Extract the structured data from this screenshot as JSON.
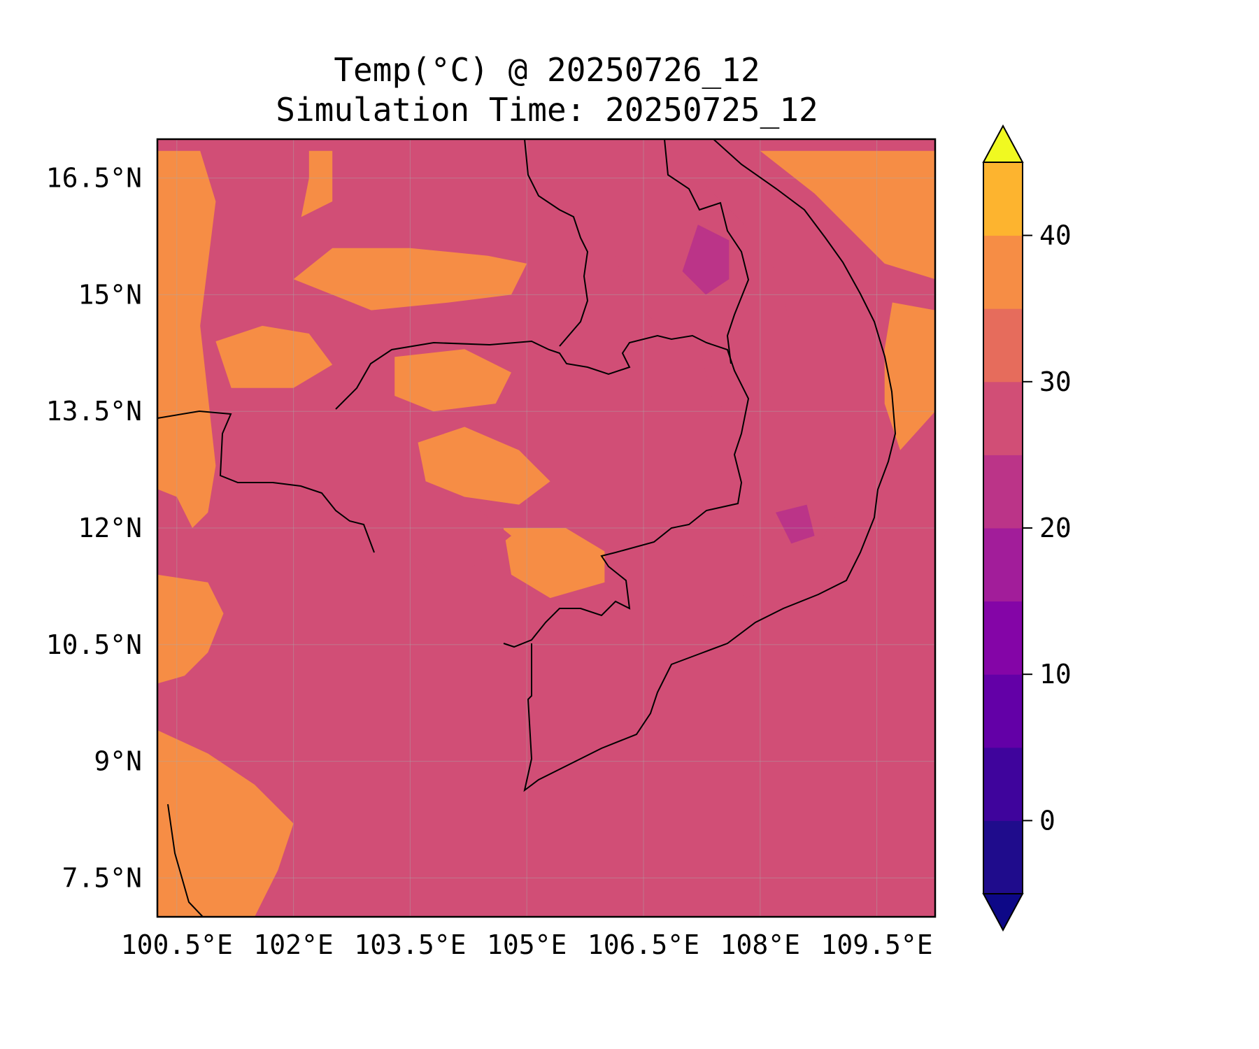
{
  "title_line1": "Temp(°C) @ 20250726_12",
  "title_line2": "Simulation Time: 20250725_12",
  "chart_data": {
    "type": "heatmap",
    "variable": "Temp(°C)",
    "xlim": [
      100.25,
      110.25
    ],
    "ylim": [
      7.0,
      17.0
    ],
    "x_ticks": [
      100.5,
      102.0,
      103.5,
      105.0,
      106.5,
      108.0,
      109.5
    ],
    "x_tick_labels": [
      "100.5°E",
      "102°E",
      "103.5°E",
      "105°E",
      "106.5°E",
      "108°E",
      "109.5°E"
    ],
    "y_ticks": [
      7.5,
      9.0,
      10.5,
      12.0,
      13.5,
      15.0,
      16.5
    ],
    "y_tick_labels": [
      "7.5°N",
      "9°N",
      "10.5°N",
      "12°N",
      "13.5°N",
      "15°N",
      "16.5°N"
    ],
    "grid": true,
    "dominant_level": "25-30",
    "colorbar": {
      "extend": "both",
      "levels": [
        -5,
        0,
        5,
        10,
        15,
        20,
        25,
        30,
        35,
        40,
        45
      ],
      "colors": [
        "#1f0c8c",
        "#3f049c",
        "#6300a7",
        "#8405a7",
        "#a21d9a",
        "#bb3488",
        "#d14e76",
        "#e66c5c",
        "#f68d45",
        "#fdb42f",
        "#f0e126"
      ],
      "under_color": "#0d0887",
      "over_color": "#f0f921",
      "tick_values": [
        0,
        10,
        20,
        30,
        40
      ],
      "tick_labels": [
        "0",
        "10",
        "20",
        "30",
        "40"
      ]
    },
    "regions": [
      {
        "level": "30-35",
        "color": "#f68d45",
        "points": [
          [
            100.25,
            16.85
          ],
          [
            100.8,
            16.85
          ],
          [
            101.0,
            16.2
          ],
          [
            100.9,
            15.4
          ],
          [
            100.8,
            14.6
          ],
          [
            100.9,
            13.7
          ],
          [
            101.0,
            12.8
          ],
          [
            100.9,
            12.2
          ],
          [
            100.7,
            12.0
          ],
          [
            100.5,
            12.4
          ],
          [
            100.25,
            12.5
          ]
        ]
      },
      {
        "level": "30-35",
        "color": "#f68d45",
        "points": [
          [
            100.25,
            11.4
          ],
          [
            100.9,
            11.3
          ],
          [
            101.1,
            10.9
          ],
          [
            100.9,
            10.4
          ],
          [
            100.6,
            10.1
          ],
          [
            100.25,
            10.0
          ]
        ]
      },
      {
        "level": "30-35",
        "color": "#f68d45",
        "points": [
          [
            100.25,
            9.4
          ],
          [
            100.9,
            9.1
          ],
          [
            101.5,
            8.7
          ],
          [
            102.0,
            8.2
          ],
          [
            101.8,
            7.6
          ],
          [
            101.5,
            7.0
          ],
          [
            100.25,
            7.0
          ]
        ]
      },
      {
        "level": "30-35",
        "color": "#f68d45",
        "points": [
          [
            102.2,
            16.85
          ],
          [
            102.5,
            16.85
          ],
          [
            102.5,
            16.2
          ],
          [
            102.1,
            16.0
          ],
          [
            102.2,
            16.5
          ]
        ]
      },
      {
        "level": "30-35",
        "color": "#f68d45",
        "points": [
          [
            102.5,
            15.6
          ],
          [
            103.5,
            15.6
          ],
          [
            104.5,
            15.5
          ],
          [
            105.0,
            15.4
          ],
          [
            104.8,
            15.0
          ],
          [
            104.0,
            14.9
          ],
          [
            103.0,
            14.8
          ],
          [
            102.5,
            15.0
          ],
          [
            102.0,
            15.2
          ]
        ]
      },
      {
        "level": "30-35",
        "color": "#f68d45",
        "points": [
          [
            101.0,
            14.4
          ],
          [
            101.6,
            14.6
          ],
          [
            102.2,
            14.5
          ],
          [
            102.5,
            14.1
          ],
          [
            102.0,
            13.8
          ],
          [
            101.2,
            13.8
          ]
        ]
      },
      {
        "level": "30-35",
        "color": "#f68d45",
        "points": [
          [
            103.3,
            14.2
          ],
          [
            104.2,
            14.3
          ],
          [
            104.8,
            14.0
          ],
          [
            104.6,
            13.6
          ],
          [
            103.8,
            13.5
          ],
          [
            103.3,
            13.7
          ]
        ]
      },
      {
        "level": "30-35",
        "color": "#f68d45",
        "points": [
          [
            103.6,
            13.1
          ],
          [
            104.2,
            13.3
          ],
          [
            104.9,
            13.0
          ],
          [
            105.3,
            12.6
          ],
          [
            104.9,
            12.3
          ],
          [
            104.2,
            12.4
          ],
          [
            103.7,
            12.6
          ]
        ]
      },
      {
        "level": "30-35",
        "color": "#f68d45",
        "points": [
          [
            104.7,
            12.0
          ],
          [
            105.5,
            12.0
          ],
          [
            106.0,
            11.7
          ],
          [
            106.0,
            11.3
          ],
          [
            105.3,
            11.1
          ],
          [
            104.8,
            11.4
          ]
        ]
      },
      {
        "level": "30-35",
        "color": "#f68d45",
        "points": [
          [
            108.0,
            16.85
          ],
          [
            110.25,
            16.85
          ],
          [
            110.25,
            15.2
          ],
          [
            109.6,
            15.4
          ],
          [
            109.2,
            15.8
          ],
          [
            108.7,
            16.3
          ]
        ]
      },
      {
        "level": "30-35",
        "color": "#f68d45",
        "points": [
          [
            109.7,
            14.9
          ],
          [
            110.25,
            14.8
          ],
          [
            110.25,
            13.5
          ],
          [
            109.8,
            13.0
          ],
          [
            109.6,
            13.6
          ],
          [
            109.6,
            14.3
          ]
        ]
      },
      {
        "level": "20-25",
        "color": "#d14e76",
        "points": [
          [
            103.7,
            12.5
          ],
          [
            104.3,
            12.3
          ],
          [
            104.8,
            11.9
          ],
          [
            104.3,
            11.5
          ],
          [
            103.8,
            11.4
          ],
          [
            103.5,
            11.7
          ],
          [
            103.4,
            12.1
          ]
        ]
      },
      {
        "level": "20-25",
        "color": "#d14e76",
        "points": [
          [
            103.9,
            11.1
          ],
          [
            104.2,
            11.1
          ],
          [
            104.2,
            10.6
          ],
          [
            103.9,
            10.6
          ]
        ]
      },
      {
        "level": "20-25",
        "color": "#d14e76",
        "points": [
          [
            106.0,
            16.85
          ],
          [
            106.9,
            16.85
          ],
          [
            107.4,
            16.3
          ],
          [
            107.8,
            15.9
          ],
          [
            108.2,
            15.3
          ],
          [
            108.4,
            14.6
          ],
          [
            108.3,
            13.9
          ],
          [
            107.9,
            13.4
          ],
          [
            107.4,
            13.6
          ],
          [
            107.2,
            14.4
          ],
          [
            106.7,
            14.6
          ],
          [
            106.3,
            15.0
          ],
          [
            106.1,
            15.6
          ],
          [
            106.3,
            16.2
          ]
        ]
      },
      {
        "level": "20-25",
        "color": "#d14e76",
        "points": [
          [
            107.5,
            12.7
          ],
          [
            108.1,
            12.9
          ],
          [
            108.8,
            12.7
          ],
          [
            109.0,
            12.2
          ],
          [
            108.7,
            11.7
          ],
          [
            108.2,
            11.2
          ],
          [
            107.8,
            11.1
          ],
          [
            107.5,
            11.6
          ],
          [
            107.2,
            12.1
          ]
        ]
      },
      {
        "level": "15-20",
        "color": "#bb3488",
        "points": [
          [
            107.2,
            15.9
          ],
          [
            107.6,
            15.7
          ],
          [
            107.6,
            15.2
          ],
          [
            107.3,
            15.0
          ],
          [
            107.0,
            15.3
          ]
        ]
      },
      {
        "level": "15-20",
        "color": "#bb3488",
        "points": [
          [
            108.2,
            12.2
          ],
          [
            108.6,
            12.3
          ],
          [
            108.7,
            11.9
          ],
          [
            108.4,
            11.8
          ]
        ]
      }
    ]
  }
}
